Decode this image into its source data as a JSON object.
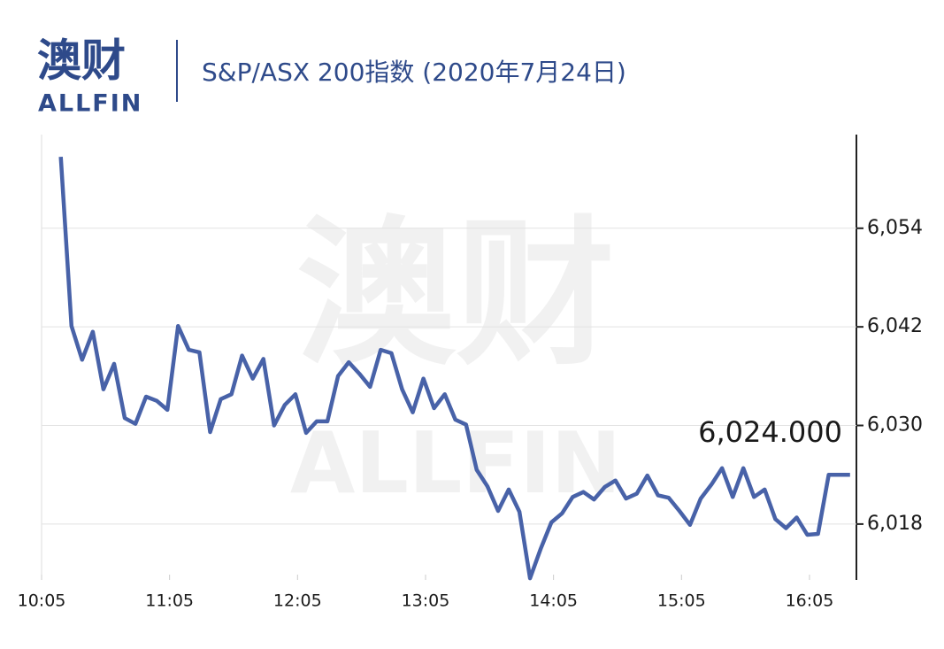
{
  "logo": {
    "cn": "澳财",
    "en": "ALLFIN"
  },
  "chart_data": {
    "type": "line",
    "title": "S&P/ASX 200指数 (2020年7月24日)",
    "x": [
      "10:14",
      "10:19",
      "10:24",
      "10:29",
      "10:34",
      "10:39",
      "10:44",
      "10:49",
      "10:54",
      "10:59",
      "11:04",
      "11:09",
      "11:14",
      "11:19",
      "11:24",
      "11:29",
      "11:34",
      "11:39",
      "11:44",
      "11:49",
      "11:54",
      "11:59",
      "12:04",
      "12:09",
      "12:14",
      "12:19",
      "12:24",
      "12:29",
      "12:34",
      "12:39",
      "12:44",
      "12:49",
      "12:54",
      "12:59",
      "13:04",
      "13:09",
      "13:14",
      "13:19",
      "13:24",
      "13:29",
      "13:34",
      "13:39",
      "13:44",
      "13:49",
      "13:54",
      "13:59",
      "14:04",
      "14:09",
      "14:14",
      "14:19",
      "14:24",
      "14:29",
      "14:34",
      "14:39",
      "14:44",
      "14:49",
      "14:54",
      "14:59",
      "15:04",
      "15:09",
      "15:14",
      "15:19",
      "15:24",
      "15:29",
      "15:34",
      "15:39",
      "15:44",
      "15:49",
      "15:54",
      "15:59",
      "16:04",
      "16:09",
      "16:14",
      "16:24"
    ],
    "values": [
      6062.7,
      6042.1,
      6038.0,
      6041.4,
      6034.4,
      6037.5,
      6030.9,
      6030.2,
      6033.5,
      6033.0,
      6031.9,
      6042.1,
      6039.2,
      6038.9,
      6029.2,
      6033.2,
      6033.8,
      6038.5,
      6035.7,
      6038.1,
      6030.0,
      6032.5,
      6033.8,
      6029.1,
      6030.5,
      6030.5,
      6036.0,
      6037.7,
      6036.3,
      6034.7,
      6039.2,
      6038.8,
      6034.4,
      6031.6,
      6035.7,
      6032.1,
      6033.8,
      6030.7,
      6030.1,
      6024.6,
      6022.6,
      6019.6,
      6022.2,
      6019.5,
      6011.4,
      6015.0,
      6018.2,
      6019.3,
      6021.3,
      6021.9,
      6021.0,
      6022.5,
      6023.3,
      6021.1,
      6021.7,
      6023.9,
      6021.5,
      6021.2,
      6019.6,
      6017.9,
      6021.1,
      6022.8,
      6024.8,
      6021.3,
      6024.8,
      6021.3,
      6022.2,
      6018.6,
      6017.5,
      6018.8,
      6016.7,
      6016.8,
      6024.0,
      6024.0
    ],
    "color": "#4862a8",
    "annotation": "6,024.000",
    "xlim": [
      "10:05",
      "16:27"
    ],
    "xticks": [
      "10:05",
      "11:05",
      "12:05",
      "13:05",
      "14:05",
      "15:05",
      "16:05"
    ],
    "ylim": [
      6011.2,
      6065.4
    ],
    "yticks": [
      {
        "value": 6018,
        "label": "6,018"
      },
      {
        "value": 6030,
        "label": "6,030"
      },
      {
        "value": 6042,
        "label": "6,042"
      },
      {
        "value": 6054,
        "label": "6,054"
      }
    ],
    "grid": true
  }
}
